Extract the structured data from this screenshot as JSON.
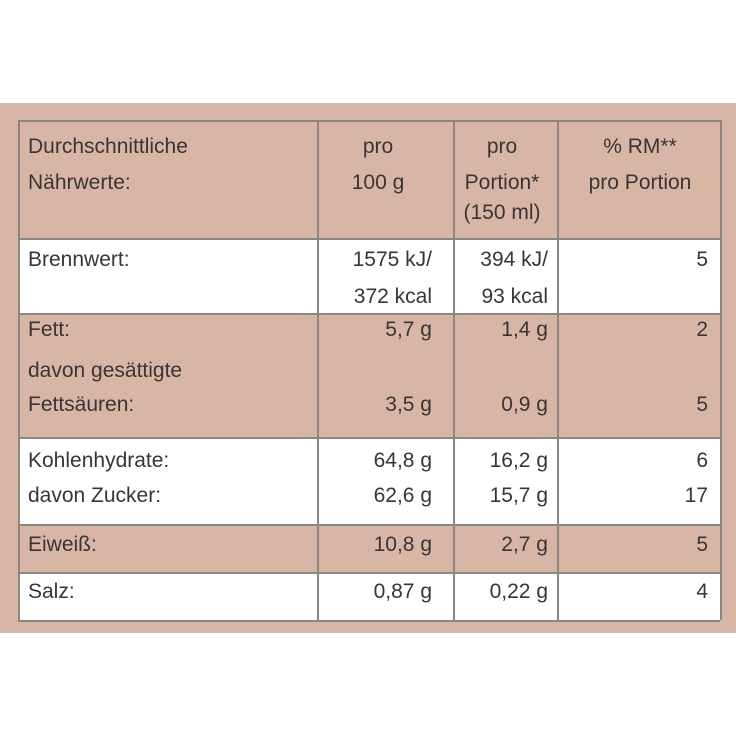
{
  "table": {
    "header": [
      [
        "Durchschnittliche",
        "Nährwerte:"
      ],
      [
        "pro",
        "100 g"
      ],
      [
        "pro",
        "Portion*",
        "(150 ml)"
      ],
      [
        "% RM**",
        "pro Portion"
      ]
    ],
    "rows": [
      {
        "lines": [
          [
            "Brennwert:",
            "1575 kJ/",
            "394 kJ/",
            "5"
          ],
          [
            null,
            "372 kcal",
            "93 kcal",
            null
          ]
        ]
      },
      {
        "lines": [
          [
            "Fett:",
            "5,7 g",
            "1,4 g",
            "2"
          ],
          [
            "davon gesättigte",
            null,
            null,
            null
          ],
          [
            "Fettsäuren:",
            "3,5 g",
            "0,9 g",
            "5"
          ]
        ]
      },
      {
        "lines": [
          [
            "Kohlenhydrate:",
            "64,8 g",
            "16,2 g",
            "6"
          ],
          [
            "davon Zucker:",
            "62,6 g",
            "15,7 g",
            "17"
          ]
        ]
      },
      {
        "lines": [
          [
            "Eiweiß:",
            "10,8 g",
            "2,7 g",
            "5"
          ]
        ]
      },
      {
        "lines": [
          [
            "Salz:",
            "0,87 g",
            "0,22 g",
            "4"
          ]
        ]
      }
    ]
  }
}
